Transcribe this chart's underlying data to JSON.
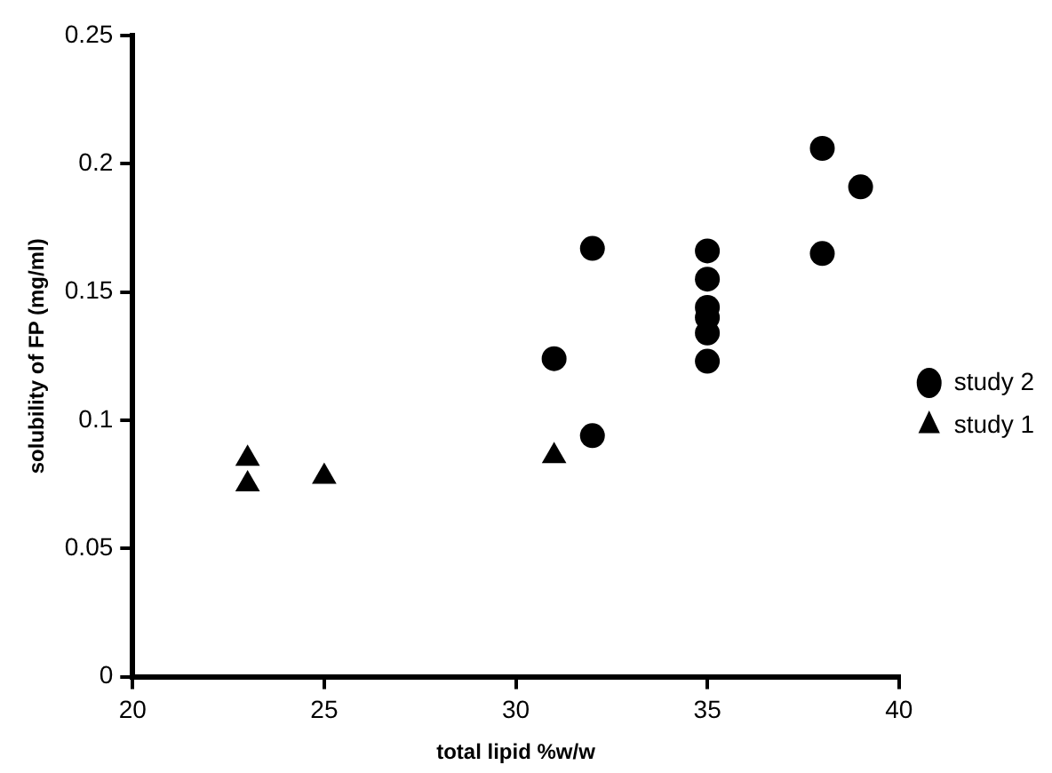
{
  "chart_data": {
    "type": "scatter",
    "xlabel": "total lipid %w/w",
    "ylabel": "solubility of FP (mg/ml)",
    "xlim": [
      20,
      40
    ],
    "xticks": [
      20,
      25,
      30,
      35,
      40
    ],
    "ylim": [
      0,
      0.25
    ],
    "yticks": [
      0,
      {
        "value": 0.05,
        "label": "0.05"
      },
      {
        "value": 0.1,
        "label": "0.1"
      },
      {
        "value": 0.15,
        "label": "0.15"
      },
      {
        "value": 0.2,
        "label": "0.2"
      },
      {
        "value": 0.25,
        "label": "0.25"
      }
    ],
    "grid": false,
    "legend": "right",
    "series": [
      {
        "name": "study 2",
        "color": "#000000",
        "marker": "circle",
        "x": [
          31,
          32,
          32,
          35,
          35,
          35,
          35,
          35,
          35,
          38,
          39,
          38
        ],
        "values": [
          0.124,
          0.167,
          0.094,
          0.166,
          0.155,
          0.144,
          0.14,
          0.134,
          0.123,
          0.206,
          0.191,
          0.165
        ]
      },
      {
        "name": "study 1",
        "color": "#000000",
        "marker": "triangle",
        "x": [
          23,
          23,
          25,
          31
        ],
        "values": [
          0.085,
          0.075,
          0.078,
          0.086
        ]
      }
    ]
  }
}
